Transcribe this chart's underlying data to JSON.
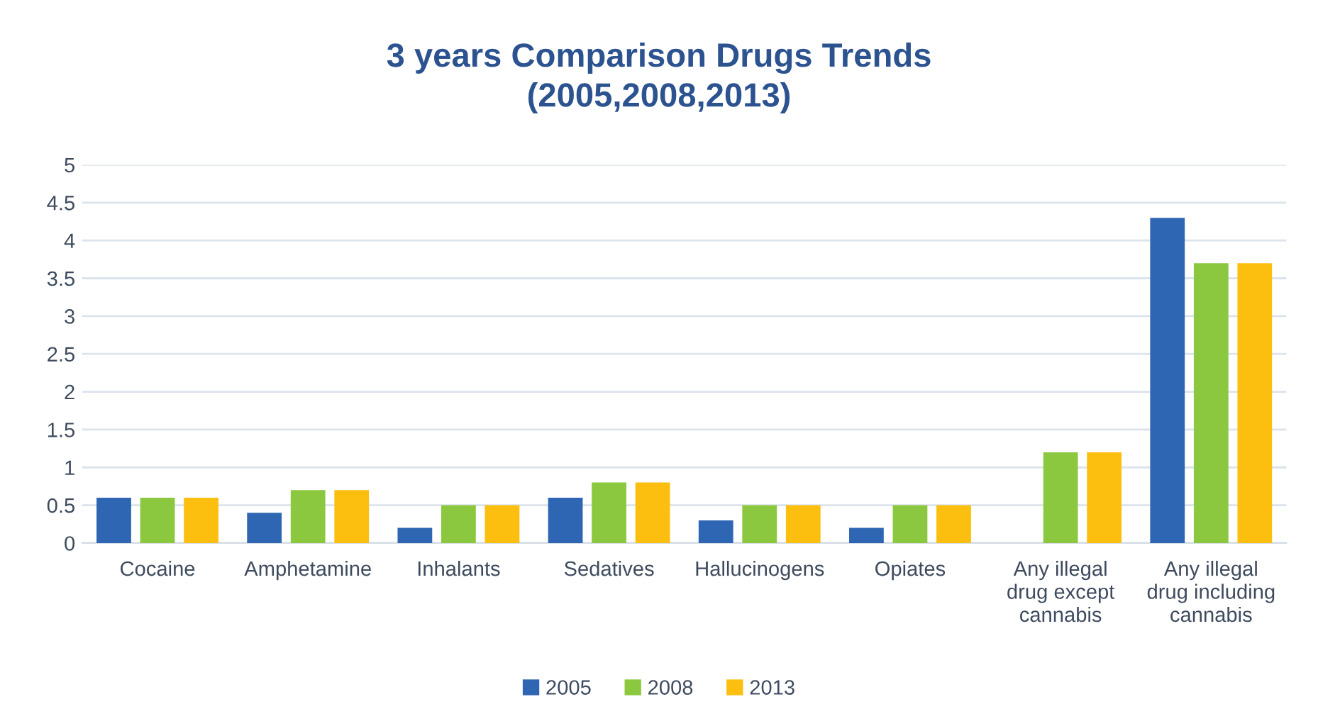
{
  "chart_data": {
    "type": "bar",
    "title": "3 years Comparison Drugs Trends\n(2005,2008,2013)",
    "categories": [
      "Cocaine",
      "Amphetamine",
      "Inhalants",
      "Sedatives",
      "Hallucinogens",
      "Opiates",
      "Any illegal\ndrug except\ncannabis",
      "Any illegal\ndrug including\ncannabis"
    ],
    "series": [
      {
        "name": "2005",
        "color": "#2f66b3",
        "values": [
          0.6,
          0.4,
          0.2,
          0.6,
          0.3,
          0.2,
          null,
          4.3
        ]
      },
      {
        "name": "2008",
        "color": "#8cc83f",
        "values": [
          0.6,
          0.7,
          0.5,
          0.8,
          0.5,
          0.5,
          1.2,
          3.7
        ]
      },
      {
        "name": "2013",
        "color": "#fdbf0f",
        "values": [
          0.6,
          0.7,
          0.5,
          0.8,
          0.5,
          0.5,
          1.2,
          3.7
        ]
      }
    ],
    "ylim": [
      0,
      5
    ],
    "yticks": [
      0,
      {
        "value": 0.5,
        "label": "0.5"
      },
      1,
      {
        "value": 1.5,
        "label": "1.5"
      },
      2,
      {
        "value": 2.5,
        "label": "2.5"
      },
      3,
      {
        "value": 3.5,
        "label": "3.5"
      },
      4,
      {
        "value": 4.5,
        "label": "4.5"
      },
      5
    ],
    "grid": "y",
    "legend": "bottom"
  }
}
